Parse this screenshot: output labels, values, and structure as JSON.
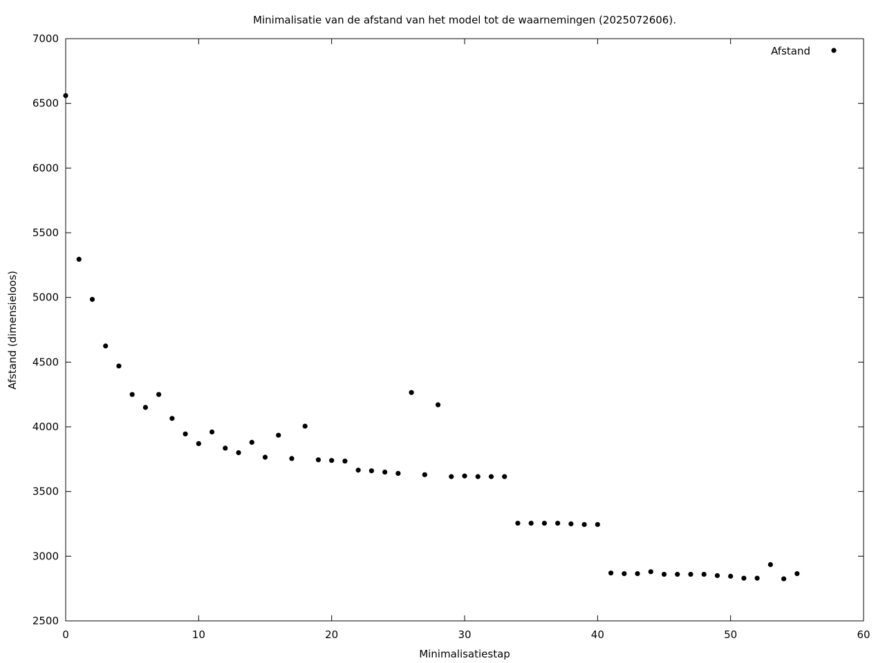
{
  "chart_data": {
    "type": "scatter",
    "title": "Minimalisatie van de afstand van het model tot de waarnemingen (2025072606).",
    "xlabel": "Minimalisatiestap",
    "ylabel": "Afstand (dimensieloos)",
    "xlim": [
      0,
      60
    ],
    "ylim": [
      2500,
      7000
    ],
    "xticks": [
      0,
      10,
      20,
      30,
      40,
      50,
      60
    ],
    "yticks": [
      2500,
      3000,
      3500,
      4000,
      4500,
      5000,
      5500,
      6000,
      6500,
      7000
    ],
    "grid": false,
    "legend_position": "top-right",
    "marker_color": "#000000",
    "series": [
      {
        "name": "Afstand",
        "x": [
          0,
          1,
          2,
          3,
          4,
          5,
          6,
          7,
          8,
          9,
          10,
          11,
          12,
          13,
          14,
          15,
          16,
          17,
          18,
          19,
          20,
          21,
          22,
          23,
          24,
          25,
          26,
          27,
          28,
          29,
          30,
          31,
          32,
          33,
          34,
          35,
          36,
          37,
          38,
          39,
          40,
          41,
          42,
          43,
          44,
          45,
          46,
          47,
          48,
          49,
          50,
          51,
          52,
          53,
          54,
          55
        ],
        "y": [
          6560,
          5295,
          4985,
          4625,
          4470,
          4250,
          4150,
          4250,
          4065,
          3945,
          3870,
          3960,
          3835,
          3800,
          3880,
          3765,
          3935,
          3755,
          4005,
          3745,
          3740,
          3735,
          3665,
          3660,
          3650,
          3640,
          4265,
          3630,
          4170,
          3615,
          3620,
          3615,
          3615,
          3615,
          3255,
          3255,
          3255,
          3255,
          3250,
          3245,
          3245,
          2870,
          2865,
          2865,
          2880,
          2860,
          2860,
          2860,
          2860,
          2850,
          2845,
          2830,
          2830,
          2935,
          2825,
          2865
        ]
      }
    ]
  }
}
